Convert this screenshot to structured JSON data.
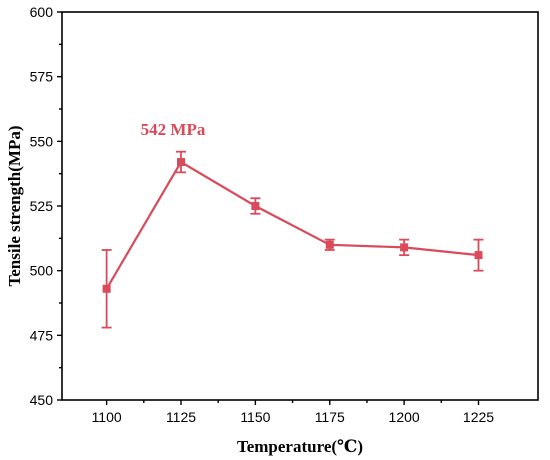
{
  "chart_data": {
    "type": "line",
    "title": "",
    "xlabel": "Temperature(℃)",
    "ylabel": "Tensile strength(MPa)",
    "x": [
      1100,
      1125,
      1150,
      1175,
      1200,
      1225
    ],
    "xticks": [
      "1100",
      "1125",
      "1150",
      "1175",
      "1200",
      "1225"
    ],
    "xlim": [
      1085,
      1245
    ],
    "ylim": [
      450,
      600
    ],
    "yticks": [
      "450",
      "475",
      "500",
      "525",
      "550",
      "575",
      "600"
    ],
    "series": [
      {
        "values": [
          493,
          542,
          525,
          510,
          509,
          506
        ],
        "error": [
          15,
          4,
          3,
          2,
          3,
          6
        ],
        "color": "#d94a5a",
        "marker": "square"
      }
    ],
    "annotations": [
      {
        "text": "542 MPa",
        "x": 1125,
        "y": 542,
        "color": "#d94a5a"
      }
    ],
    "grid": false,
    "legend": "none"
  }
}
